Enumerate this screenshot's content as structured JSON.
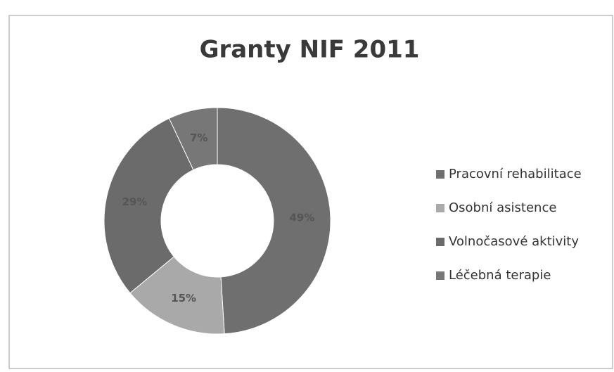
{
  "chart_data": {
    "type": "donut",
    "title": "Granty NIF 2011",
    "categories": [
      "Pracovní rehabilitace",
      "Osobní asistence",
      "Volnočasové aktivity",
      "Léčebná terapie"
    ],
    "values": [
      49,
      15,
      29,
      7
    ],
    "value_labels": [
      "49%",
      "15%",
      "29%",
      "7%"
    ],
    "colors": [
      "#6f6f6f",
      "#a9a9a9",
      "#6b6b6b",
      "#777777"
    ],
    "legend": "right"
  }
}
